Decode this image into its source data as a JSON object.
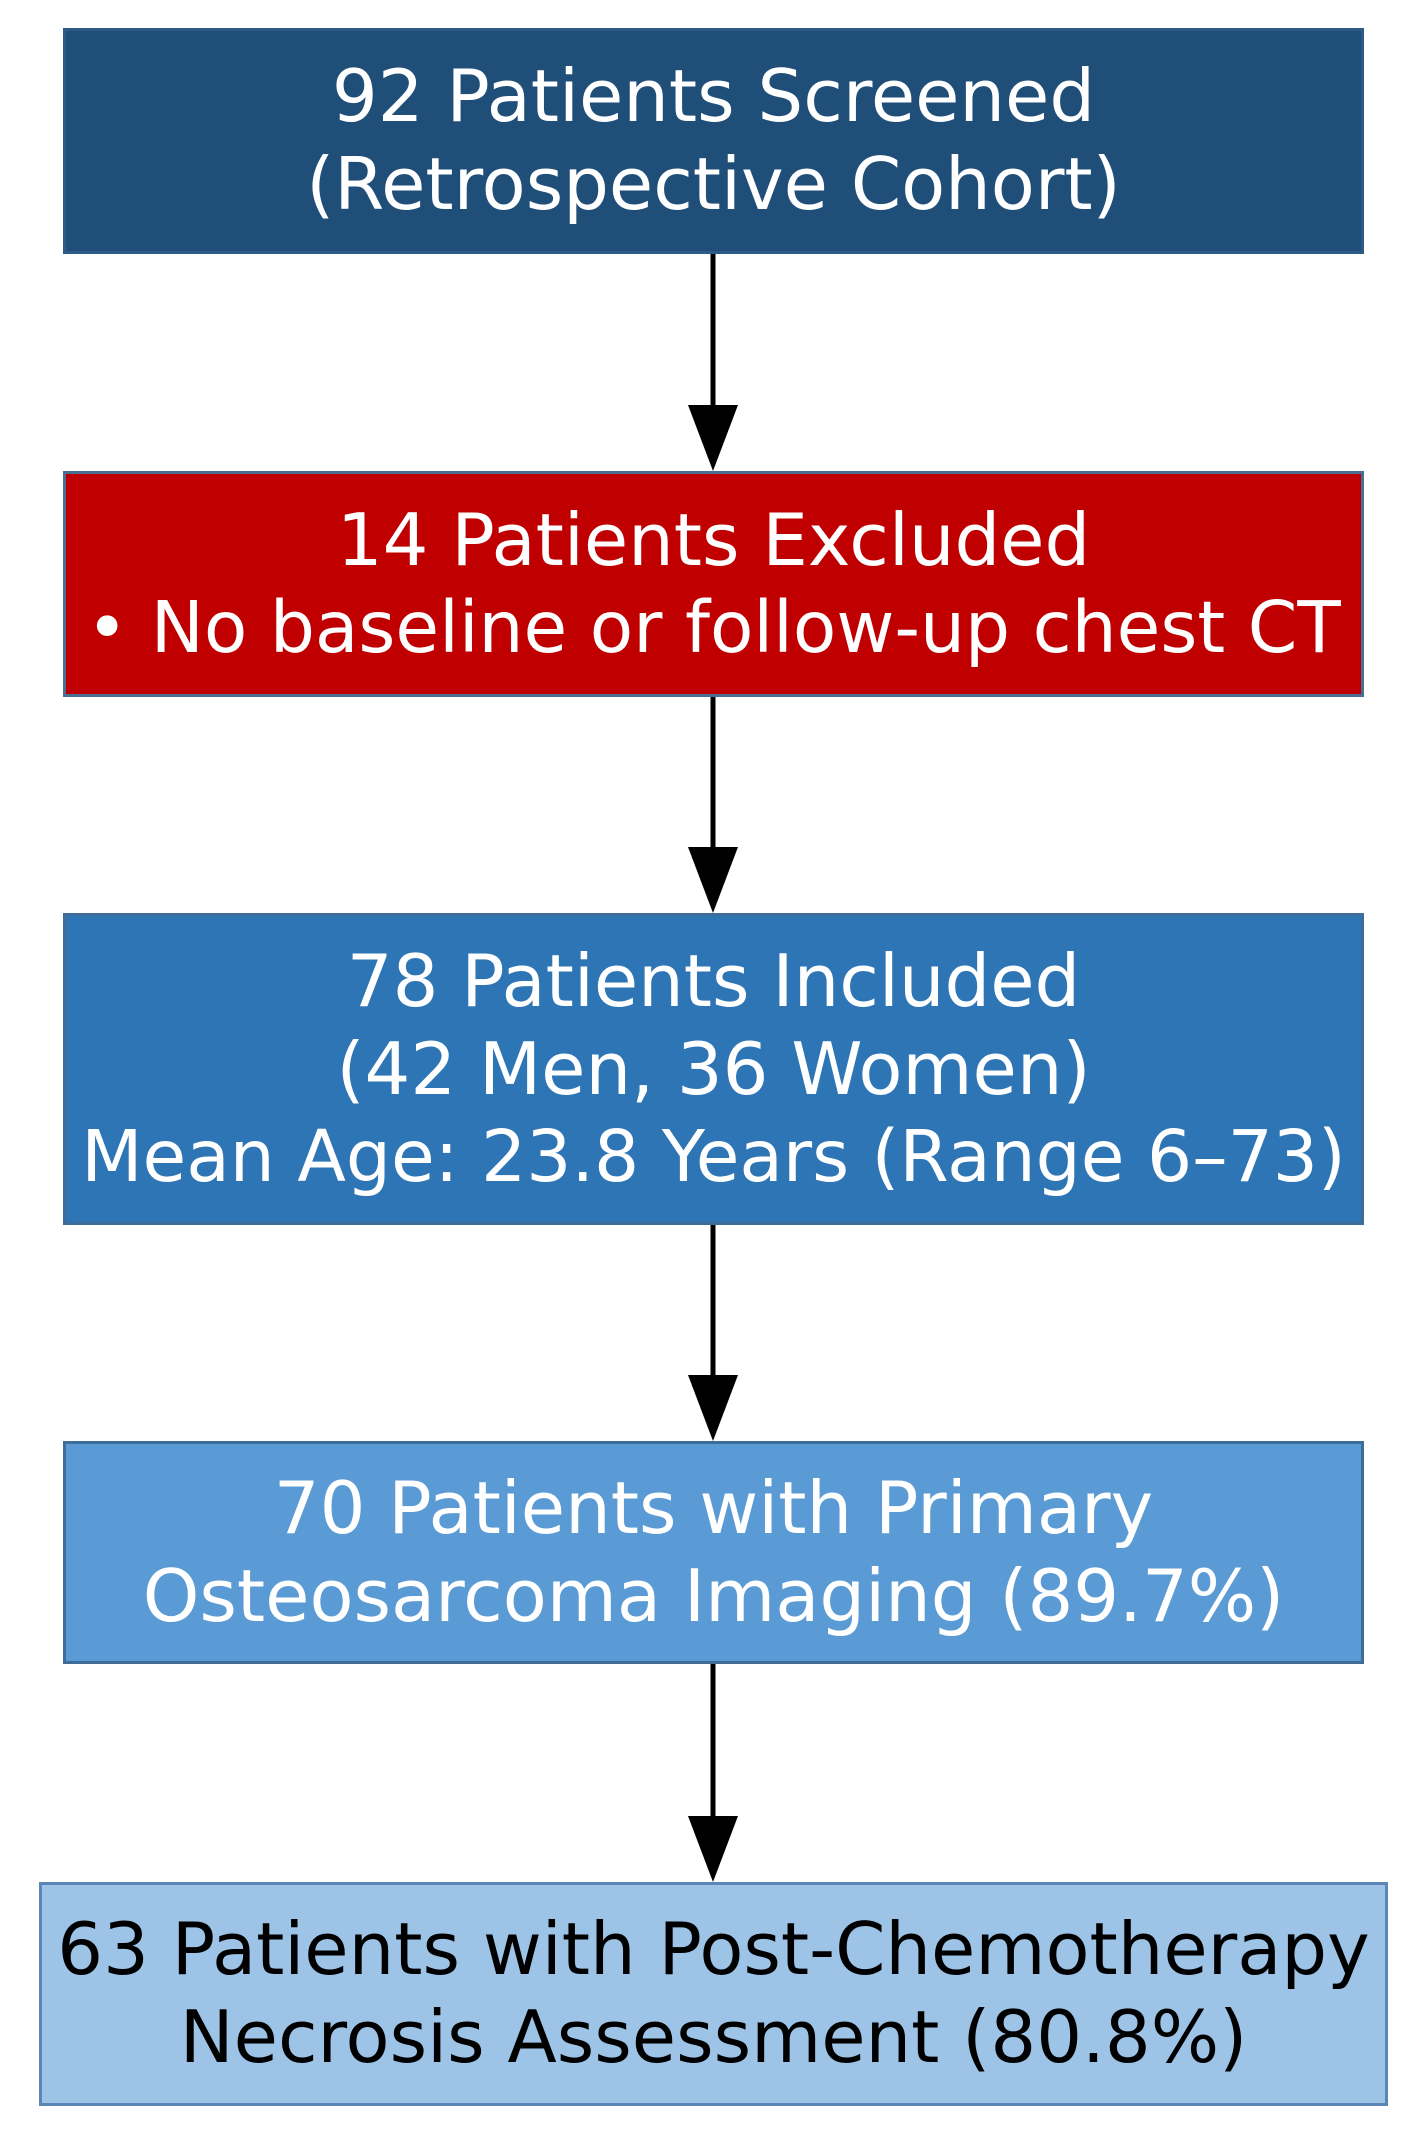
{
  "boxes": [
    {
      "id": "screened",
      "lines": [
        "92 Patients Screened",
        "(Retrospective Cohort)"
      ],
      "fill": "#1f4e79",
      "text_color": "#ffffff"
    },
    {
      "id": "excluded",
      "lines": [
        "14 Patients Excluded",
        "• No baseline or follow-up chest CT"
      ],
      "fill": "#c00000",
      "text_color": "#ffffff"
    },
    {
      "id": "included",
      "lines": [
        "78 Patients Included",
        "(42 Men, 36 Women)",
        "Mean Age: 23.8 Years (Range 6–73)"
      ],
      "fill": "#2e75b6",
      "text_color": "#ffffff"
    },
    {
      "id": "primary-imaging",
      "lines": [
        "70 Patients with Primary",
        "Osteosarcoma Imaging (89.7%)"
      ],
      "fill": "#5b9bd5",
      "text_color": "#ffffff"
    },
    {
      "id": "necrosis-assessment",
      "lines": [
        "63 Patients with Post-Chemotherapy",
        "Necrosis Assessment (80.8%)"
      ],
      "fill": "#9dc3e6",
      "text_color": "#000000"
    }
  ],
  "edges": [
    {
      "from": "screened",
      "to": "excluded"
    },
    {
      "from": "excluded",
      "to": "included"
    },
    {
      "from": "included",
      "to": "primary-imaging"
    },
    {
      "from": "primary-imaging",
      "to": "necrosis-assessment"
    }
  ],
  "arrow_color": "#000000"
}
